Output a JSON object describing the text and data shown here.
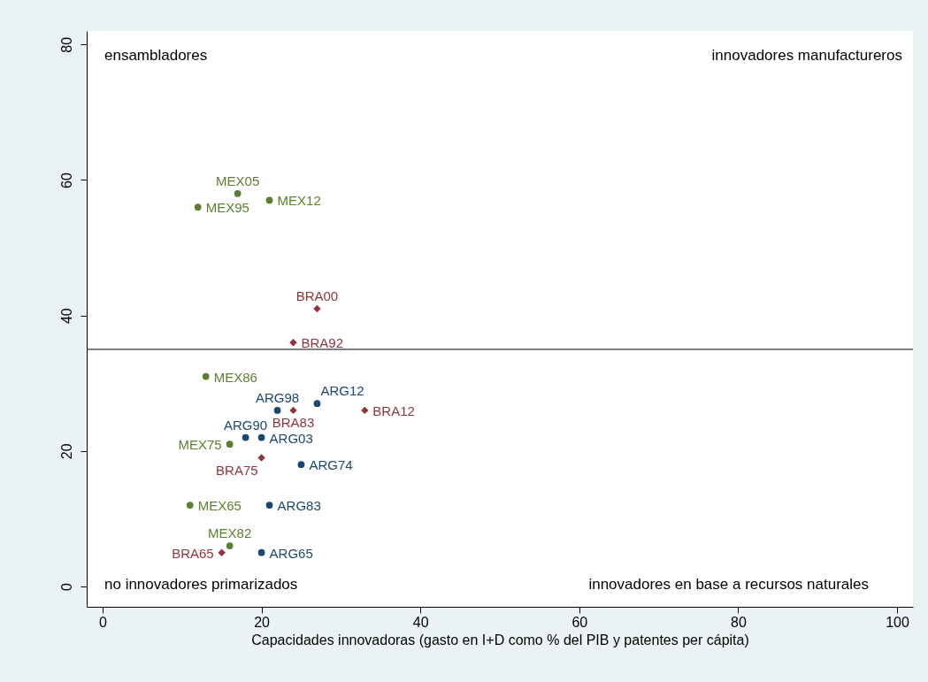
{
  "chart_data": {
    "type": "scatter",
    "xlabel": "Capacidades innovadoras (gasto en I+D como % del PIB y patentes per cápita)",
    "xlim": [
      -2,
      102
    ],
    "ylim": [
      -3,
      82
    ],
    "xticks": [
      0,
      20,
      40,
      60,
      80,
      100
    ],
    "yticks": [
      0,
      20,
      40,
      60,
      80
    ],
    "grid": false,
    "series": [
      {
        "color": "#5a7f2e",
        "marker": "circle",
        "x": [
          17,
          21,
          12,
          13,
          16,
          11,
          16
        ],
        "values": [
          58,
          57,
          56,
          31,
          21,
          12,
          6
        ]
      },
      {
        "color": "#90353b",
        "marker": "diamond",
        "x": [
          27,
          24,
          24,
          33,
          20,
          15
        ],
        "values": [
          41,
          36,
          26,
          26,
          19,
          5
        ]
      },
      {
        "color": "#1a476f",
        "marker": "circle",
        "x": [
          27,
          22,
          18,
          20,
          25,
          21,
          20
        ],
        "values": [
          27,
          26,
          22,
          22,
          18,
          12,
          5
        ]
      }
    ],
    "ref_lines": [
      {
        "axis": "y",
        "value": 35,
        "color": "#000000"
      }
    ],
    "annotations": [
      "ensambladores",
      "innovadores manufactureros",
      "no innovadores primarizados",
      "innovadores en base a recursos naturales",
      {
        "text": "MEX05",
        "x": 17,
        "y": 58
      },
      {
        "text": "MEX12",
        "x": 21,
        "y": 57
      },
      {
        "text": "MEX95",
        "x": 12,
        "y": 56
      },
      {
        "text": "MEX86",
        "x": 13,
        "y": 31
      },
      {
        "text": "MEX75",
        "x": 16,
        "y": 21
      },
      {
        "text": "MEX65",
        "x": 11,
        "y": 12
      },
      {
        "text": "MEX82",
        "x": 16,
        "y": 6
      },
      {
        "text": "BRA00",
        "x": 27,
        "y": 41
      },
      {
        "text": "BRA92",
        "x": 24,
        "y": 36
      },
      {
        "text": "BRA83",
        "x": 24,
        "y": 26
      },
      {
        "text": "BRA12",
        "x": 33,
        "y": 26
      },
      {
        "text": "BRA75",
        "x": 20,
        "y": 19
      },
      {
        "text": "BRA65",
        "x": 15,
        "y": 5
      },
      {
        "text": "ARG12",
        "x": 27,
        "y": 27
      },
      {
        "text": "ARG98",
        "x": 22,
        "y": 26
      },
      {
        "text": "ARG90",
        "x": 18,
        "y": 22
      },
      {
        "text": "ARG03",
        "x": 20,
        "y": 22
      },
      {
        "text": "ARG74",
        "x": 25,
        "y": 18
      },
      {
        "text": "ARG83",
        "x": 21,
        "y": 12
      },
      {
        "text": "ARG65",
        "x": 20,
        "y": 5
      }
    ]
  }
}
